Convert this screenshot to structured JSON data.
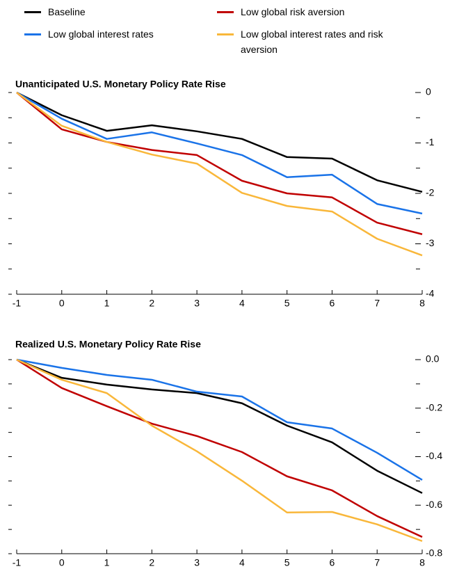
{
  "chart_data": [
    {
      "type": "line",
      "title": "Unanticipated U.S. Monetary Policy Rate Rise",
      "x": [
        -1,
        0,
        1,
        2,
        3,
        4,
        5,
        6,
        7,
        8
      ],
      "xlim": [
        -1,
        8
      ],
      "xticks": [
        -1,
        0,
        1,
        2,
        3,
        4,
        5,
        6,
        7,
        8
      ],
      "ylim": [
        -4,
        0
      ],
      "yticks": [
        0,
        -1,
        -2,
        -3,
        -4
      ],
      "minor_yticks": [
        -0.5,
        -1.5,
        -2.5,
        -3.5
      ],
      "series": [
        {
          "name": "Baseline",
          "color": "#000000",
          "values": [
            0,
            -0.45,
            -0.76,
            -0.65,
            -0.77,
            -0.92,
            -1.28,
            -1.31,
            -1.74,
            -1.97
          ]
        },
        {
          "name": "Low global interest rates",
          "color": "#1a73e8",
          "values": [
            0,
            -0.52,
            -0.92,
            -0.79,
            -1.01,
            -1.24,
            -1.68,
            -1.63,
            -2.21,
            -2.4
          ]
        },
        {
          "name": "Low global risk aversion",
          "color": "#c00000",
          "values": [
            0,
            -0.73,
            -0.98,
            -1.14,
            -1.24,
            -1.75,
            -2.0,
            -2.08,
            -2.58,
            -2.81
          ]
        },
        {
          "name": "Low global interest rates and risk aversion",
          "color": "#f9b73a",
          "values": [
            0,
            -0.66,
            -0.98,
            -1.23,
            -1.41,
            -1.99,
            -2.25,
            -2.36,
            -2.9,
            -3.23
          ]
        }
      ]
    },
    {
      "type": "line",
      "title": "Realized U.S. Monetary Policy Rate Rise",
      "x": [
        -1,
        0,
        1,
        2,
        3,
        4,
        5,
        6,
        7,
        8
      ],
      "xlim": [
        -1,
        8
      ],
      "xticks": [
        -1,
        0,
        1,
        2,
        3,
        4,
        5,
        6,
        7,
        8
      ],
      "ylim": [
        -0.8,
        0
      ],
      "yticks": [
        {
          "value": 0,
          "label": "0.0"
        },
        -0.2,
        -0.4,
        -0.6,
        -0.8
      ],
      "minor_yticks": [
        -0.1,
        -0.3,
        -0.5,
        -0.7
      ],
      "series": [
        {
          "color": "#000000",
          "values": [
            0,
            -0.075,
            -0.103,
            -0.123,
            -0.138,
            -0.18,
            -0.272,
            -0.341,
            -0.458,
            -0.55
          ]
        },
        {
          "color": "#1a73e8",
          "values": [
            0,
            -0.034,
            -0.063,
            -0.083,
            -0.132,
            -0.152,
            -0.258,
            -0.284,
            -0.384,
            -0.496
          ]
        },
        {
          "color": "#c00000",
          "values": [
            0,
            -0.117,
            -0.192,
            -0.264,
            -0.315,
            -0.381,
            -0.481,
            -0.539,
            -0.645,
            -0.731
          ]
        },
        {
          "color": "#f9b73a",
          "values": [
            0,
            -0.083,
            -0.138,
            -0.272,
            -0.378,
            -0.499,
            -0.63,
            -0.628,
            -0.679,
            -0.748
          ]
        }
      ]
    }
  ]
}
